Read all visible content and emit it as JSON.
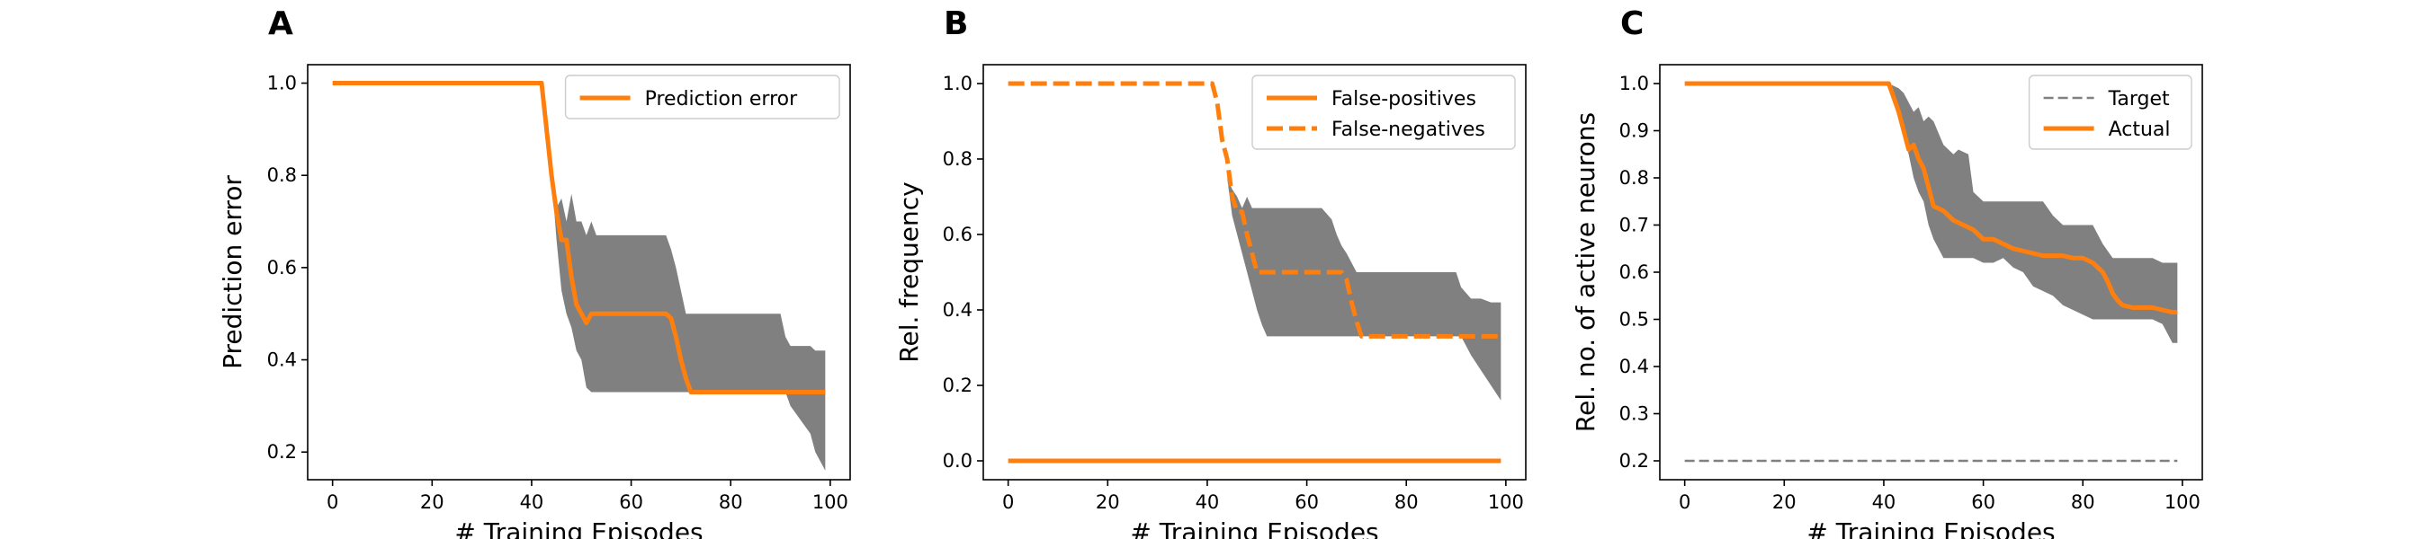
{
  "colors": {
    "accent": "#ff7f0e",
    "band": "#808080",
    "target": "#808080",
    "axis": "#000000"
  },
  "chart_data": [
    {
      "panel": "A",
      "type": "line",
      "xlabel": "# Training Episodes",
      "ylabel": "Prediction error",
      "xlim": [
        -5,
        104
      ],
      "ylim": [
        0.14,
        1.04
      ],
      "xticks": [
        0,
        20,
        40,
        60,
        80,
        100
      ],
      "yticks": [
        0.2,
        0.4,
        0.6,
        0.8,
        1.0
      ],
      "ytick_labels": [
        "0.2",
        "0.4",
        "0.6",
        "0.8",
        "1.0"
      ],
      "legend_position": "top-right",
      "band": {
        "x": [
          0,
          42,
          44,
          45,
          46,
          47,
          48,
          49,
          50,
          51,
          52,
          53,
          54,
          55,
          56,
          60,
          61,
          63,
          64,
          66,
          67,
          68,
          69,
          70,
          71,
          72,
          80,
          90,
          91,
          92,
          96,
          97,
          99
        ],
        "upper": [
          1.0,
          1.0,
          0.82,
          0.73,
          0.75,
          0.7,
          0.76,
          0.7,
          0.7,
          0.67,
          0.7,
          0.67,
          0.67,
          0.67,
          0.67,
          0.67,
          0.67,
          0.67,
          0.67,
          0.67,
          0.67,
          0.64,
          0.6,
          0.55,
          0.5,
          0.5,
          0.5,
          0.5,
          0.45,
          0.43,
          0.43,
          0.42,
          0.42
        ],
        "lower": [
          1.0,
          1.0,
          0.8,
          0.66,
          0.55,
          0.5,
          0.47,
          0.42,
          0.4,
          0.34,
          0.33,
          0.33,
          0.33,
          0.33,
          0.33,
          0.33,
          0.33,
          0.33,
          0.33,
          0.33,
          0.33,
          0.33,
          0.33,
          0.33,
          0.33,
          0.33,
          0.33,
          0.33,
          0.33,
          0.3,
          0.24,
          0.2,
          0.16
        ]
      },
      "series": [
        {
          "name": "Prediction error",
          "style": "solid",
          "x": [
            0,
            42,
            43,
            44,
            45,
            46,
            47,
            48,
            49,
            50,
            51,
            52,
            53,
            56,
            60,
            64,
            66,
            67,
            68,
            69,
            70,
            71,
            72,
            75,
            80,
            85,
            90,
            95,
            99
          ],
          "y": [
            1.0,
            1.0,
            0.9,
            0.8,
            0.72,
            0.66,
            0.66,
            0.58,
            0.52,
            0.5,
            0.48,
            0.5,
            0.5,
            0.5,
            0.5,
            0.5,
            0.5,
            0.5,
            0.49,
            0.45,
            0.4,
            0.36,
            0.33,
            0.33,
            0.33,
            0.33,
            0.33,
            0.33,
            0.33
          ]
        }
      ]
    },
    {
      "panel": "B",
      "type": "line",
      "xlabel": "# Training Episodes",
      "ylabel": "Rel. frequency",
      "xlim": [
        -5,
        104
      ],
      "ylim": [
        -0.05,
        1.05
      ],
      "xticks": [
        0,
        20,
        40,
        60,
        80,
        100
      ],
      "yticks": [
        0.0,
        0.2,
        0.4,
        0.6,
        0.8,
        1.0
      ],
      "ytick_labels": [
        "0.0",
        "0.2",
        "0.4",
        "0.6",
        "0.8",
        "1.0"
      ],
      "legend_position": "top-right",
      "band": {
        "x": [
          0,
          41,
          43,
          44,
          45,
          46,
          47,
          48,
          49,
          50,
          51,
          52,
          53,
          55,
          60,
          63,
          65,
          66,
          67,
          68,
          70,
          75,
          80,
          90,
          91,
          93,
          95,
          97,
          99
        ],
        "upper": [
          1.0,
          1.0,
          0.85,
          0.75,
          0.72,
          0.7,
          0.67,
          0.7,
          0.67,
          0.67,
          0.67,
          0.67,
          0.67,
          0.67,
          0.67,
          0.67,
          0.64,
          0.6,
          0.57,
          0.55,
          0.5,
          0.5,
          0.5,
          0.5,
          0.46,
          0.43,
          0.43,
          0.42,
          0.42
        ],
        "lower": [
          1.0,
          1.0,
          0.85,
          0.75,
          0.65,
          0.6,
          0.55,
          0.5,
          0.45,
          0.4,
          0.36,
          0.33,
          0.33,
          0.33,
          0.33,
          0.33,
          0.33,
          0.33,
          0.33,
          0.33,
          0.33,
          0.33,
          0.33,
          0.33,
          0.33,
          0.28,
          0.24,
          0.2,
          0.16
        ]
      },
      "series": [
        {
          "name": "False-positives",
          "style": "solid",
          "x": [
            0,
            99
          ],
          "y": [
            0.0,
            0.0
          ]
        },
        {
          "name": "False-negatives",
          "style": "dashed",
          "x": [
            0,
            41,
            42,
            43,
            44,
            45,
            46,
            47,
            48,
            49,
            50,
            51,
            55,
            60,
            65,
            67,
            68,
            69,
            70,
            71,
            72,
            75,
            80,
            90,
            99
          ],
          "y": [
            1.0,
            1.0,
            0.95,
            0.85,
            0.8,
            0.7,
            0.66,
            0.66,
            0.6,
            0.55,
            0.5,
            0.5,
            0.5,
            0.5,
            0.5,
            0.5,
            0.48,
            0.42,
            0.37,
            0.33,
            0.33,
            0.33,
            0.33,
            0.33,
            0.33
          ]
        }
      ]
    },
    {
      "panel": "C",
      "type": "line",
      "xlabel": "# Training Episodes",
      "ylabel": "Rel. no. of active neurons",
      "xlim": [
        -5,
        104
      ],
      "ylim": [
        0.16,
        1.04
      ],
      "xticks": [
        0,
        20,
        40,
        60,
        80,
        100
      ],
      "yticks": [
        0.2,
        0.3,
        0.4,
        0.5,
        0.6,
        0.7,
        0.8,
        0.9,
        1.0
      ],
      "ytick_labels": [
        "0.2",
        "0.3",
        "0.4",
        "0.5",
        "0.6",
        "0.7",
        "0.8",
        "0.9",
        "1.0"
      ],
      "legend_position": "top-right",
      "band": {
        "x": [
          0,
          41,
          43,
          44,
          45,
          46,
          47,
          48,
          49,
          50,
          52,
          54,
          55,
          57,
          58,
          60,
          62,
          64,
          66,
          68,
          70,
          72,
          74,
          76,
          78,
          80,
          82,
          84,
          86,
          88,
          90,
          92,
          94,
          96,
          98,
          99
        ],
        "upper": [
          1.0,
          1.0,
          0.99,
          0.98,
          0.96,
          0.94,
          0.95,
          0.92,
          0.93,
          0.92,
          0.87,
          0.85,
          0.86,
          0.85,
          0.77,
          0.75,
          0.75,
          0.75,
          0.75,
          0.75,
          0.75,
          0.75,
          0.72,
          0.7,
          0.7,
          0.7,
          0.7,
          0.66,
          0.63,
          0.63,
          0.63,
          0.63,
          0.63,
          0.62,
          0.62,
          0.62
        ],
        "lower": [
          1.0,
          1.0,
          0.95,
          0.9,
          0.85,
          0.8,
          0.77,
          0.75,
          0.7,
          0.67,
          0.63,
          0.63,
          0.63,
          0.63,
          0.63,
          0.62,
          0.62,
          0.63,
          0.61,
          0.6,
          0.57,
          0.56,
          0.55,
          0.53,
          0.52,
          0.51,
          0.5,
          0.5,
          0.5,
          0.5,
          0.5,
          0.5,
          0.5,
          0.49,
          0.45,
          0.45
        ]
      },
      "series": [
        {
          "name": "Target",
          "style": "dashed-thin",
          "x": [
            0,
            99
          ],
          "y": [
            0.2,
            0.2
          ]
        },
        {
          "name": "Actual",
          "style": "solid",
          "x": [
            0,
            41,
            42,
            43,
            44,
            45,
            46,
            47,
            48,
            49,
            50,
            52,
            54,
            56,
            58,
            60,
            62,
            64,
            66,
            68,
            70,
            72,
            74,
            76,
            78,
            80,
            82,
            83,
            84,
            85,
            86,
            87,
            88,
            90,
            92,
            94,
            96,
            98,
            99
          ],
          "y": [
            1.0,
            1.0,
            0.97,
            0.94,
            0.9,
            0.86,
            0.87,
            0.84,
            0.82,
            0.78,
            0.74,
            0.73,
            0.71,
            0.7,
            0.69,
            0.67,
            0.67,
            0.66,
            0.65,
            0.645,
            0.64,
            0.635,
            0.635,
            0.635,
            0.63,
            0.63,
            0.62,
            0.61,
            0.6,
            0.58,
            0.555,
            0.54,
            0.53,
            0.525,
            0.525,
            0.525,
            0.52,
            0.515,
            0.515
          ]
        }
      ]
    }
  ]
}
